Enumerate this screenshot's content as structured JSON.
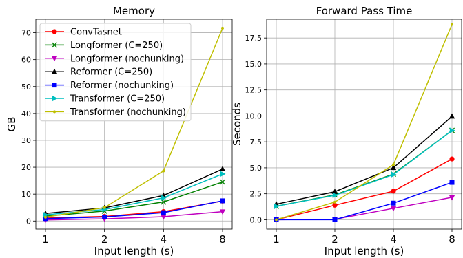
{
  "chart_data": [
    {
      "type": "line",
      "title": "Memory",
      "xlabel": "Input length (s)",
      "ylabel": "GB",
      "x": [
        1,
        2,
        4,
        8
      ],
      "x_scale": "log2",
      "xticks": [
        "1",
        "2",
        "4",
        "8"
      ],
      "ylim": [
        -3,
        75
      ],
      "yticks": [
        0,
        10,
        20,
        30,
        40,
        50,
        60,
        70
      ],
      "grid": true,
      "legend_position": "upper-left",
      "series": [
        {
          "name": "ConvTasnet",
          "color": "#ff0000",
          "marker": "circle",
          "values": [
            1.1,
            1.7,
            3.5,
            7.4
          ]
        },
        {
          "name": "Longformer (C=250)",
          "color": "#008000",
          "marker": "x",
          "values": [
            1.8,
            3.7,
            7.1,
            14.5
          ]
        },
        {
          "name": "Longformer (nochunking)",
          "color": "#bf00bf",
          "marker": "triangle-down",
          "values": [
            0.4,
            0.8,
            1.6,
            3.5
          ]
        },
        {
          "name": "Reformer (C=250)",
          "color": "#000000",
          "marker": "triangle-up",
          "values": [
            2.8,
            4.9,
            9.5,
            19.3
          ]
        },
        {
          "name": "Reformer (nochunking)",
          "color": "#0000ff",
          "marker": "square",
          "values": [
            0.9,
            1.5,
            3.1,
            7.5
          ]
        },
        {
          "name": "Transformer (C=250)",
          "color": "#00bfbf",
          "marker": "triangle-right",
          "values": [
            2.3,
            4.3,
            8.6,
            17.5
          ]
        },
        {
          "name": "Transformer (nochunking)",
          "color": "#bfbf00",
          "marker": "dot",
          "values": [
            1.4,
            5.0,
            18.6,
            71.7
          ]
        }
      ]
    },
    {
      "type": "line",
      "title": "Forward Pass Time",
      "xlabel": "Input length (s)",
      "ylabel": "Seconds",
      "x": [
        1,
        2,
        4,
        8
      ],
      "x_scale": "log2",
      "xticks": [
        "1",
        "2",
        "4",
        "8"
      ],
      "ylim": [
        -0.9,
        19.3
      ],
      "yticks": [
        "0.0",
        "2.5",
        "5.0",
        "7.5",
        "10.0",
        "12.5",
        "15.0",
        "17.5"
      ],
      "grid": true,
      "series": [
        {
          "name": "ConvTasnet",
          "color": "#ff0000",
          "marker": "circle",
          "values": [
            0.0,
            1.4,
            2.75,
            5.85
          ]
        },
        {
          "name": "Longformer (C=250)",
          "color": "#008000",
          "marker": "x",
          "values": [
            1.3,
            2.4,
            4.4,
            8.6
          ]
        },
        {
          "name": "Longformer (nochunking)",
          "color": "#bf00bf",
          "marker": "triangle-down",
          "values": [
            0.0,
            0.05,
            1.1,
            2.15
          ]
        },
        {
          "name": "Reformer (C=250)",
          "color": "#000000",
          "marker": "triangle-up",
          "values": [
            1.5,
            2.7,
            5.0,
            9.95
          ]
        },
        {
          "name": "Reformer (nochunking)",
          "color": "#0000ff",
          "marker": "square",
          "values": [
            0.0,
            0.0,
            1.6,
            3.6
          ]
        },
        {
          "name": "Transformer (C=250)",
          "color": "#00bfbf",
          "marker": "triangle-right",
          "values": [
            1.3,
            2.35,
            4.35,
            8.6
          ]
        },
        {
          "name": "Transformer (nochunking)",
          "color": "#bfbf00",
          "marker": "dot",
          "values": [
            0.0,
            1.7,
            5.3,
            18.8
          ]
        }
      ]
    }
  ]
}
